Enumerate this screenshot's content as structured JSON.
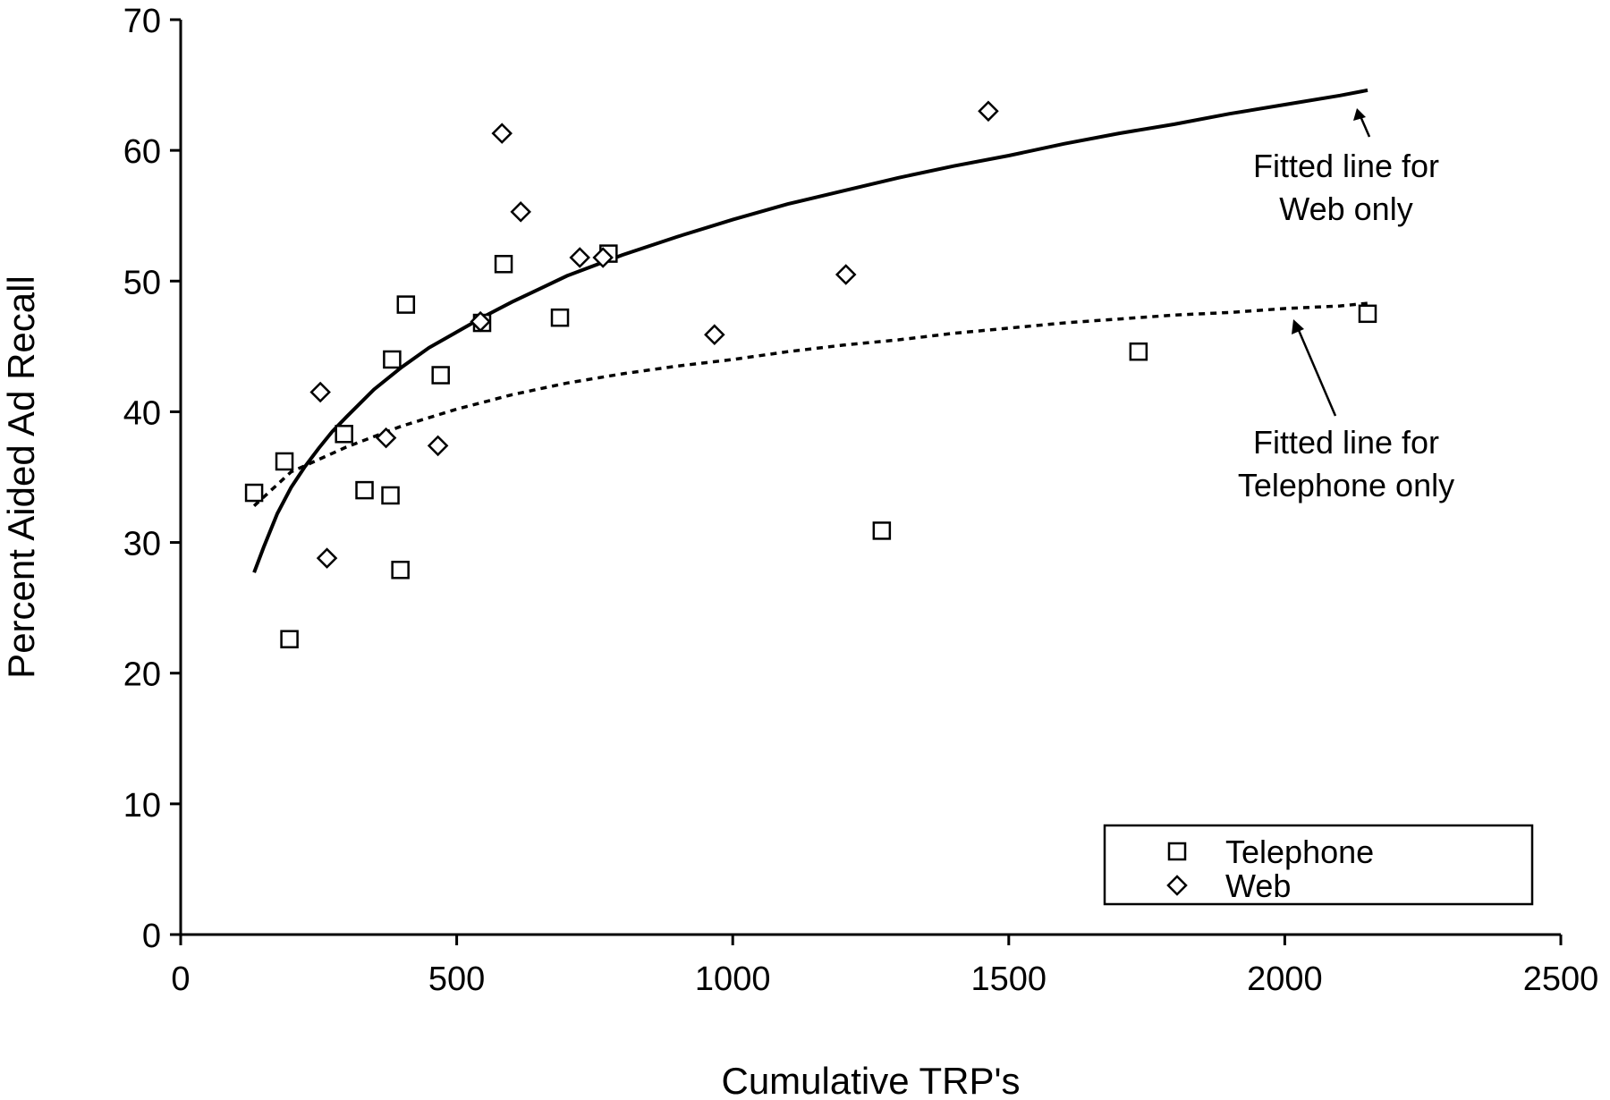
{
  "chart_data": {
    "type": "scatter",
    "xlabel": "Cumulative TRP's",
    "ylabel": "Percent Aided Ad Recall",
    "xlim": [
      0,
      2500
    ],
    "ylim": [
      0,
      70
    ],
    "xticks": [
      0,
      500,
      1000,
      1500,
      2000,
      2500
    ],
    "yticks": [
      0,
      10,
      20,
      30,
      40,
      50,
      60,
      70
    ],
    "grid": false,
    "legend_position": "bottom-right",
    "series": [
      {
        "name": "Telephone",
        "marker": "square",
        "points": [
          [
            133,
            33.8
          ],
          [
            188,
            36.2
          ],
          [
            197,
            22.6
          ],
          [
            296,
            38.3
          ],
          [
            333,
            34.0
          ],
          [
            380,
            33.6
          ],
          [
            383,
            44.0
          ],
          [
            398,
            27.9
          ],
          [
            408,
            48.2
          ],
          [
            471,
            42.8
          ],
          [
            546,
            46.8
          ],
          [
            585,
            51.3
          ],
          [
            687,
            47.2
          ],
          [
            775,
            52.1
          ],
          [
            1270,
            30.9
          ],
          [
            1735,
            44.6
          ],
          [
            2150,
            47.5
          ]
        ]
      },
      {
        "name": "Web",
        "marker": "diamond",
        "points": [
          [
            253,
            41.5
          ],
          [
            265,
            28.8
          ],
          [
            372,
            38.0
          ],
          [
            466,
            37.4
          ],
          [
            543,
            46.9
          ],
          [
            582,
            61.3
          ],
          [
            616,
            55.3
          ],
          [
            723,
            51.8
          ],
          [
            765,
            51.8
          ],
          [
            967,
            45.9
          ],
          [
            1205,
            50.5
          ],
          [
            1463,
            63.0
          ]
        ]
      }
    ],
    "fitted_lines": [
      {
        "label": "Fitted line for Web only",
        "style": "solid",
        "x": [
          133,
          150,
          175,
          200,
          225,
          250,
          275,
          300,
          350,
          400,
          450,
          500,
          550,
          600,
          650,
          700,
          750,
          800,
          900,
          1000,
          1100,
          1200,
          1300,
          1400,
          1500,
          1600,
          1700,
          1800,
          1900,
          2000,
          2100,
          2150
        ],
        "y": [
          27.7,
          29.6,
          32.2,
          34.2,
          35.8,
          37.2,
          38.5,
          39.6,
          41.7,
          43.4,
          44.9,
          46.1,
          47.3,
          48.4,
          49.4,
          50.4,
          51.2,
          52.0,
          53.4,
          54.7,
          55.9,
          56.9,
          57.9,
          58.8,
          59.6,
          60.5,
          61.3,
          62.0,
          62.8,
          63.5,
          64.2,
          64.6
        ]
      },
      {
        "label": "Fitted line for Telephone only",
        "style": "dotted",
        "x": [
          133,
          200,
          300,
          400,
          500,
          600,
          700,
          800,
          900,
          1000,
          1100,
          1200,
          1300,
          1400,
          1500,
          1600,
          1700,
          1800,
          1900,
          2000,
          2100,
          2150
        ],
        "y": [
          32.8,
          35.4,
          37.3,
          38.9,
          40.2,
          41.3,
          42.2,
          42.9,
          43.5,
          44.0,
          44.6,
          45.1,
          45.5,
          46.0,
          46.4,
          46.8,
          47.1,
          47.4,
          47.6,
          47.9,
          48.1,
          48.3
        ]
      }
    ],
    "annotations": [
      {
        "lines": [
          "Fitted line for",
          "Web only"
        ],
        "points_to_series": "Web"
      },
      {
        "lines": [
          "Fitted line for",
          "Telephone only"
        ],
        "points_to_series": "Telephone"
      }
    ]
  }
}
